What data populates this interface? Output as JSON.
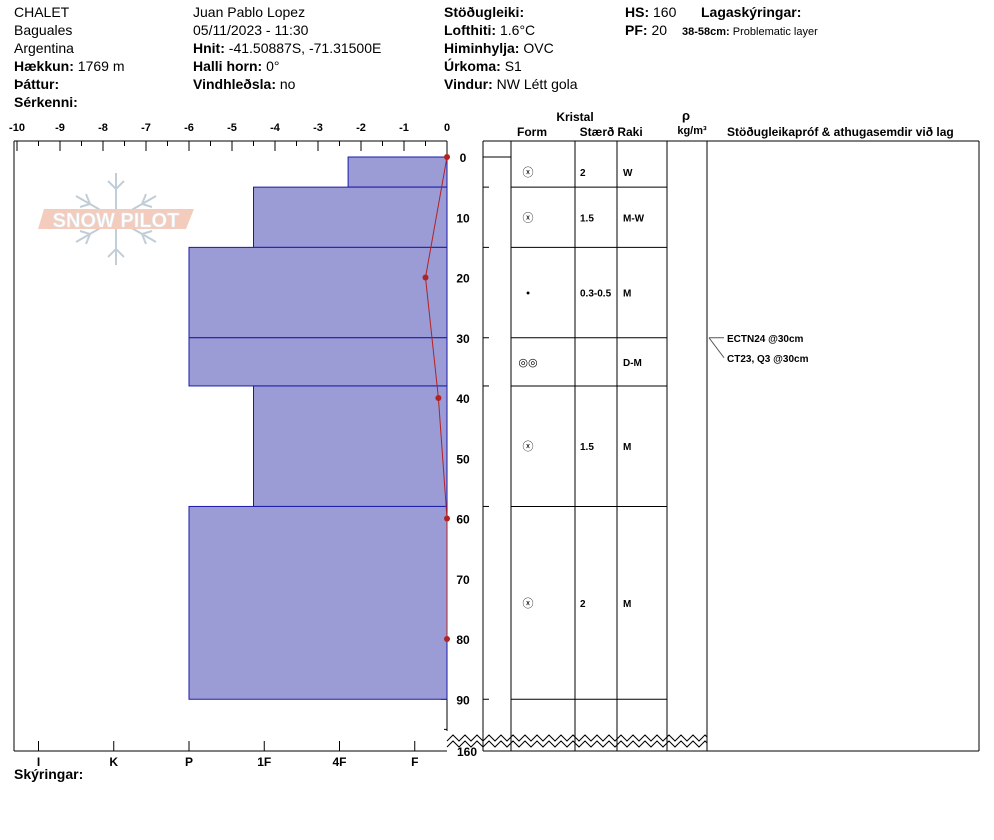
{
  "header": {
    "location": "CHALET",
    "area": "Baguales",
    "country": "Argentina",
    "elevation_label": "Hækkun:",
    "elevation_value": "1769 m",
    "aspect_label": "Þáttur:",
    "specifics_label": "Sérkenni:",
    "observer": "Juan Pablo  Lopez",
    "datetime": "05/11/2023 - 11:30",
    "coords_label": "Hnit:",
    "coords_value": "-41.50887S, -71.31500E",
    "slope_label": "Halli horn:",
    "slope_value": "0°",
    "wind_loading_label": "Vindhleðsla:",
    "wind_loading_value": "no",
    "stability_label": "Stöðugleiki:",
    "air_temp_label": "Lofthiti:",
    "air_temp_value": "1.6°C",
    "sky_label": "Himinhylja:",
    "sky_value": "OVC",
    "precip_label": "Úrkoma:",
    "precip_value": "S1",
    "wind_label": "Vindur:",
    "wind_value": "NW Létt gola",
    "hs_label": "HS:",
    "hs_value": "160",
    "pf_label": "PF:",
    "pf_value": "20",
    "layer_notes_label": "Lagaskýringar:",
    "layer_note_range": "38-58cm:",
    "layer_note_text": "Problematic layer"
  },
  "logo_text": "SNOW PILOT",
  "footer_label": "Skýringar:",
  "columns": {
    "crystal": "Kristal",
    "form": "Form",
    "size": "Stærð",
    "moisture": "Raki",
    "density_symbol": "ρ",
    "density_unit": "kg/m³",
    "tests": "Stöðugleikapróf & athugasemdir við lag"
  },
  "tests": [
    {
      "text": "ECTN24 @30cm",
      "depth": 30
    },
    {
      "text": "CT23, Q3 @30cm",
      "depth": 30
    }
  ],
  "chart_data": {
    "type": "bar",
    "temperature_axis": {
      "ticks": [
        "-10",
        "-9",
        "-8",
        "-7",
        "-6",
        "-5",
        "-4",
        "-3",
        "-2",
        "-1",
        "0"
      ],
      "range": [
        -10,
        0
      ],
      "unit": "°C"
    },
    "depth_axis": {
      "ticks": [
        "0",
        "10",
        "20",
        "30",
        "40",
        "50",
        "60",
        "70",
        "80",
        "90"
      ],
      "range": [
        0,
        90
      ],
      "bottom_label": "160"
    },
    "hardness_axis": {
      "ticks": [
        "I",
        "K",
        "P",
        "1F",
        "4F",
        "F"
      ]
    },
    "layers": [
      {
        "top": 0,
        "bottom": 5,
        "hardness": 2.3,
        "form": "ⓧ",
        "size": "2",
        "moisture": "W"
      },
      {
        "top": 5,
        "bottom": 15,
        "hardness": 4.5,
        "form": "ⓧ",
        "size": "1.5",
        "moisture": "M-W"
      },
      {
        "top": 15,
        "bottom": 30,
        "hardness": 6.0,
        "form": "•",
        "size": "0.3-0.5",
        "moisture": "M"
      },
      {
        "top": 30,
        "bottom": 38,
        "hardness": 6.0,
        "form": "◎◎",
        "size": "",
        "moisture": "D-M"
      },
      {
        "top": 38,
        "bottom": 58,
        "hardness": 4.5,
        "form": "ⓧ",
        "size": "1.5",
        "moisture": "M"
      },
      {
        "top": 58,
        "bottom": 90,
        "hardness": 6.0,
        "form": "ⓧ",
        "size": "2",
        "moisture": "M"
      }
    ],
    "temperature_profile": [
      {
        "depth": 0,
        "temp": 0.0
      },
      {
        "depth": 20,
        "temp": -0.5
      },
      {
        "depth": 40,
        "temp": -0.2
      },
      {
        "depth": 60,
        "temp": 0.0
      },
      {
        "depth": 80,
        "temp": 0.0
      }
    ],
    "colors": {
      "layer_fill": "#9b9bd6",
      "layer_stroke": "#1a1aa8",
      "temperature_line": "#b22222"
    }
  }
}
